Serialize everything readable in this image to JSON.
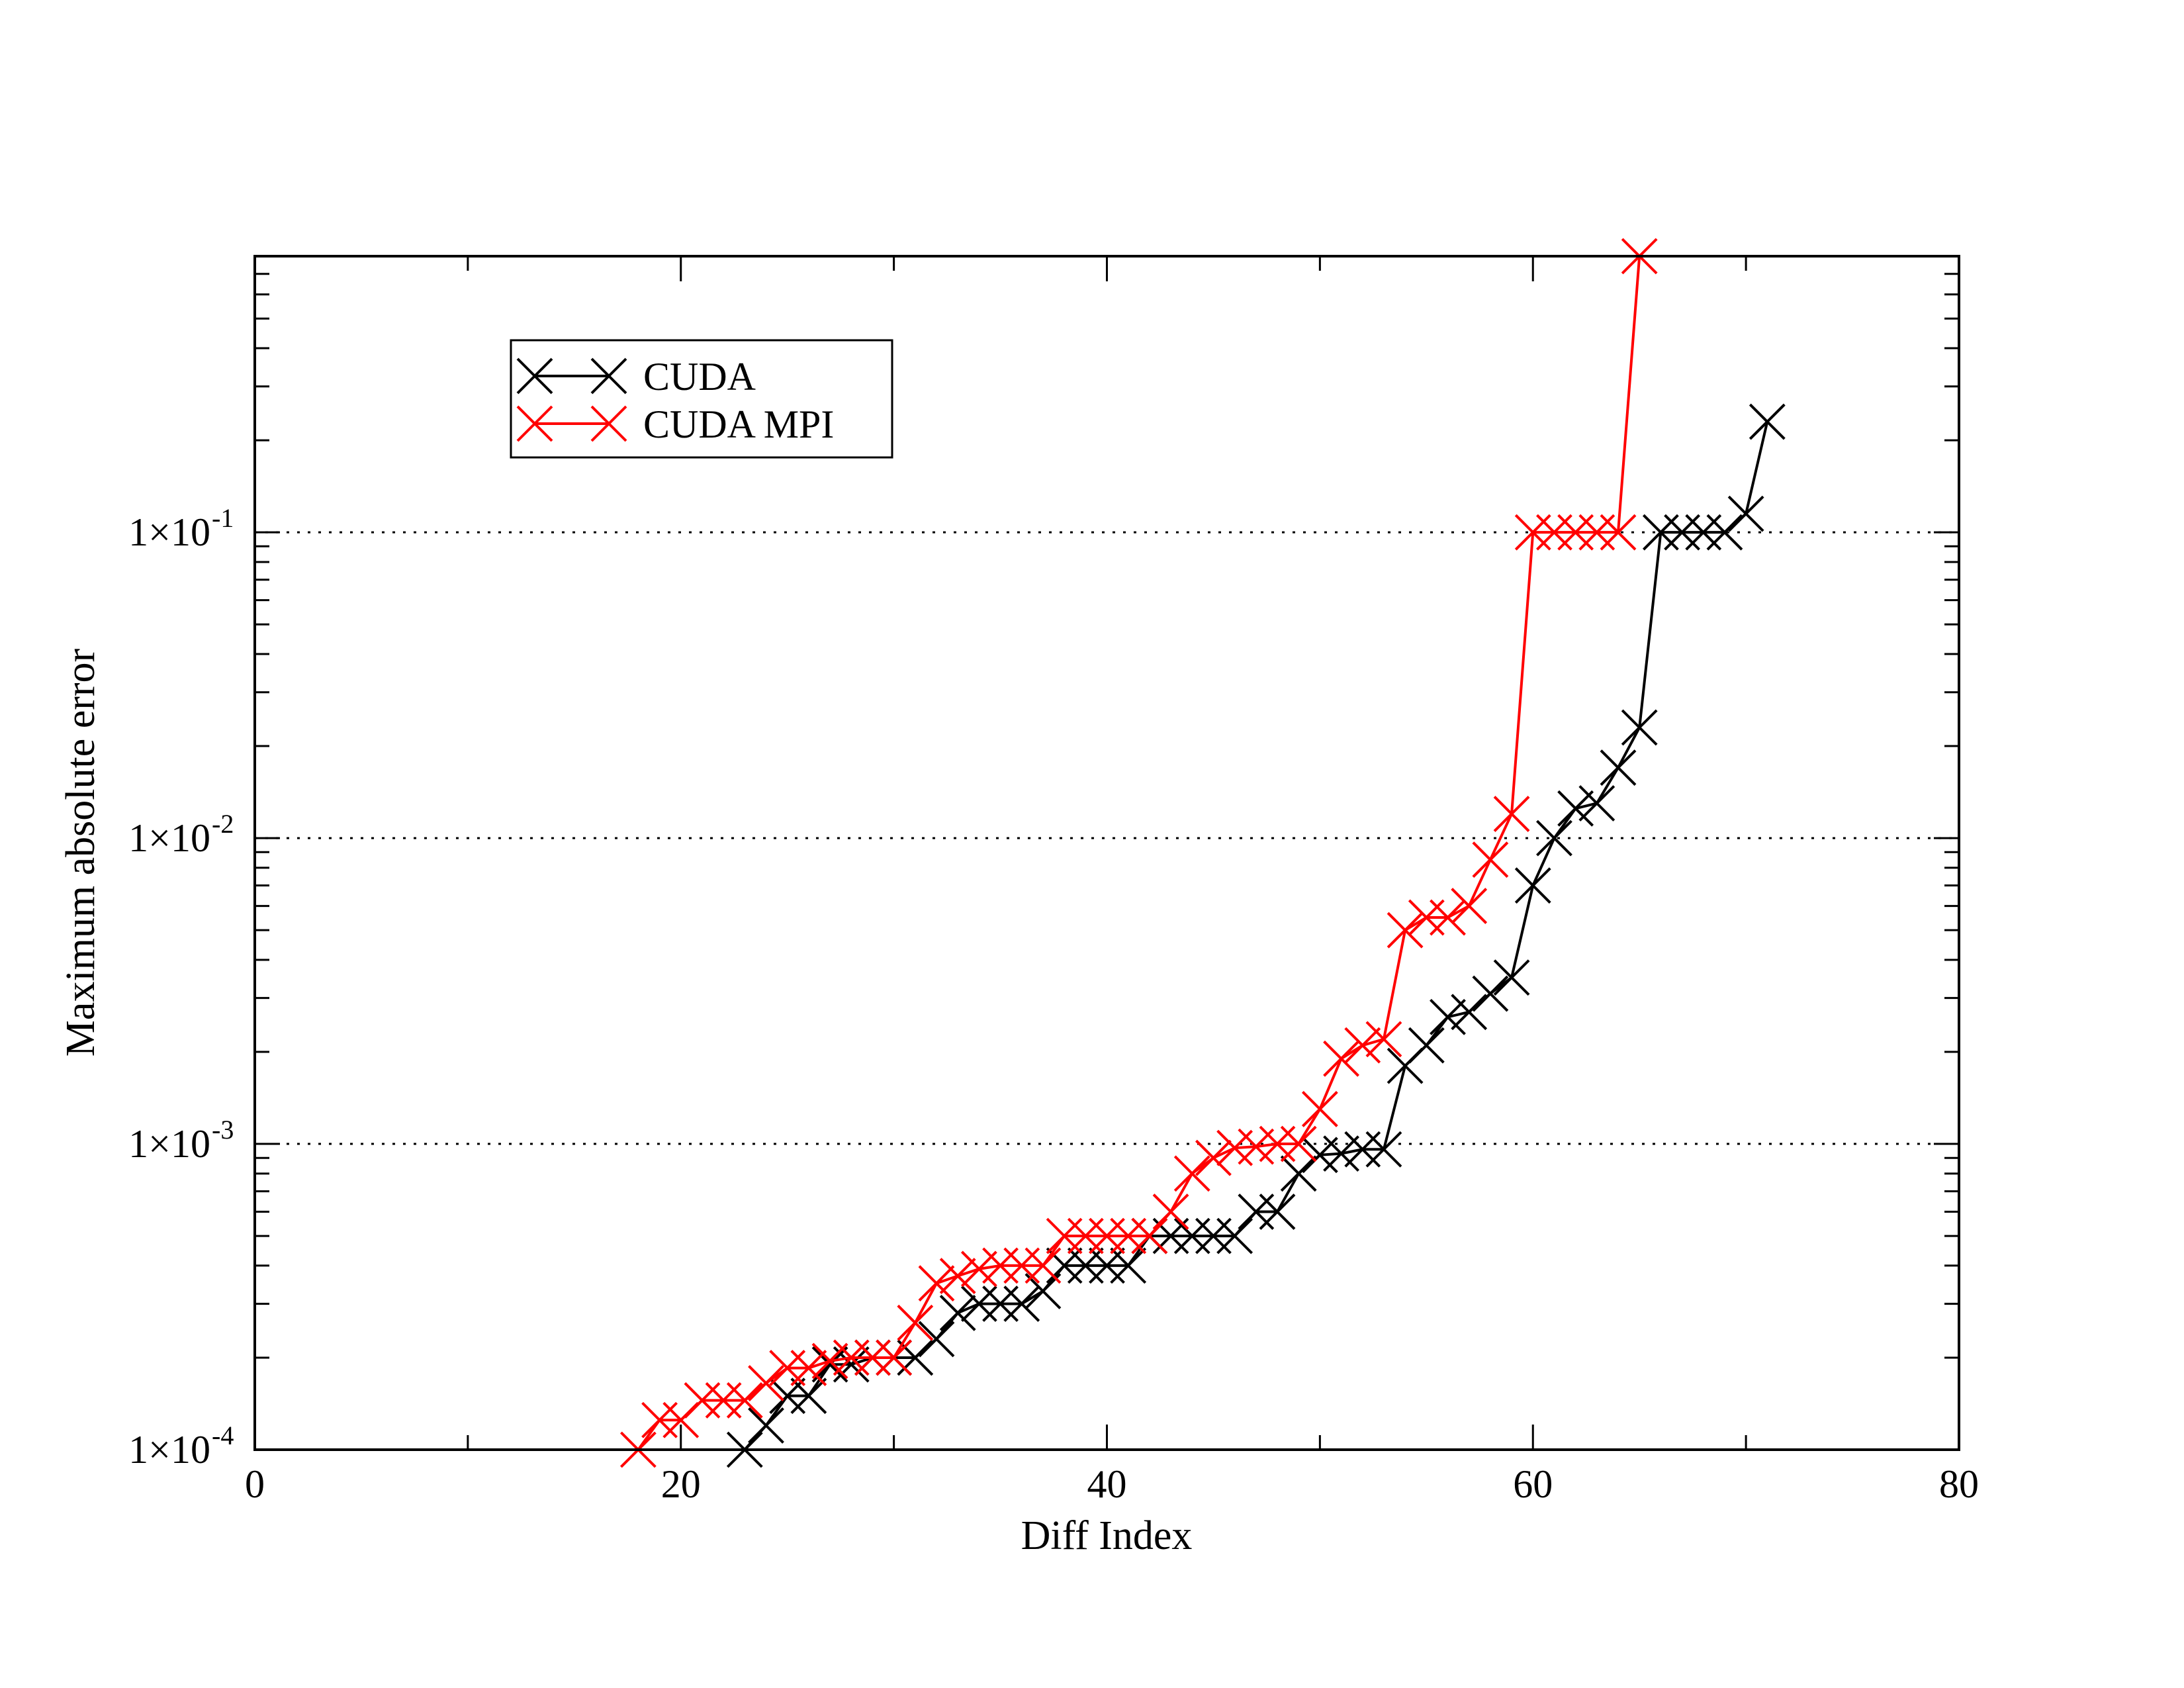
{
  "chart_data": {
    "type": "line",
    "title": "",
    "xlabel": "Diff Index",
    "ylabel": "Maximum absolute error",
    "xlim": [
      0,
      80
    ],
    "ylim": [
      0.0001,
      0.8
    ],
    "yscale": "log",
    "x_ticks": [
      0,
      20,
      40,
      60,
      80
    ],
    "x_tick_labels": [
      "0",
      "20",
      "40",
      "60",
      "80"
    ],
    "y_ticks": [
      0.0001,
      0.001,
      0.01,
      0.1
    ],
    "y_tick_labels": [
      {
        "base": "1×10",
        "exp": "-4"
      },
      {
        "base": "1×10",
        "exp": "-3"
      },
      {
        "base": "1×10",
        "exp": "-2"
      },
      {
        "base": "1×10",
        "exp": "-1"
      }
    ],
    "grid": "horizontal dotted at major y ticks",
    "legend_position": "top-left",
    "series": [
      {
        "name": "CUDA",
        "color": "#000000",
        "marker": "x",
        "x": [
          23,
          24,
          25,
          26,
          27,
          28,
          29,
          30,
          31,
          32,
          33,
          34,
          35,
          36,
          37,
          38,
          39,
          40,
          41,
          42,
          43,
          44,
          45,
          46,
          47,
          48,
          49,
          50,
          51,
          52,
          53,
          54,
          55,
          56,
          57,
          58,
          59,
          60,
          61,
          62,
          63,
          64,
          65,
          66,
          67,
          68,
          69,
          70,
          71
        ],
        "y": [
          0.0001,
          0.00012,
          0.00015,
          0.00015,
          0.00019,
          0.00019,
          0.0002,
          0.0002,
          0.0002,
          0.00023,
          0.00028,
          0.0003,
          0.0003,
          0.0003,
          0.00033,
          0.0004,
          0.0004,
          0.0004,
          0.0004,
          0.0005,
          0.0005,
          0.0005,
          0.0005,
          0.0005,
          0.0006,
          0.0006,
          0.0008,
          0.00092,
          0.00093,
          0.00096,
          0.00096,
          0.0018,
          0.0021,
          0.0026,
          0.0027,
          0.0031,
          0.0035,
          0.007,
          0.01,
          0.0125,
          0.013,
          0.017,
          0.023,
          0.1,
          0.1,
          0.1,
          0.1,
          0.115,
          0.23
        ]
      },
      {
        "name": "CUDA MPI",
        "color": "#ff0000",
        "marker": "x",
        "x": [
          18,
          19,
          20,
          21,
          22,
          23,
          24,
          25,
          26,
          27,
          28,
          29,
          30,
          31,
          32,
          33,
          34,
          35,
          36,
          37,
          38,
          39,
          40,
          41,
          42,
          43,
          44,
          45,
          46,
          47,
          48,
          49,
          50,
          51,
          52,
          53,
          54,
          55,
          56,
          57,
          58,
          59,
          60,
          61,
          62,
          63,
          64,
          65
        ],
        "y": [
          0.0001,
          0.000125,
          0.000125,
          0.000145,
          0.000145,
          0.000145,
          0.000165,
          0.000185,
          0.000185,
          0.000195,
          0.0002,
          0.0002,
          0.0002,
          0.00026,
          0.00035,
          0.00037,
          0.00039,
          0.0004,
          0.0004,
          0.0004,
          0.0005,
          0.0005,
          0.0005,
          0.0005,
          0.0005,
          0.0006,
          0.0008,
          0.0009,
          0.00097,
          0.00098,
          0.001,
          0.001,
          0.0013,
          0.0019,
          0.0021,
          0.0022,
          0.005,
          0.0055,
          0.0055,
          0.006,
          0.0085,
          0.012,
          0.1,
          0.1,
          0.1,
          0.1,
          0.1,
          0.8
        ]
      }
    ]
  }
}
